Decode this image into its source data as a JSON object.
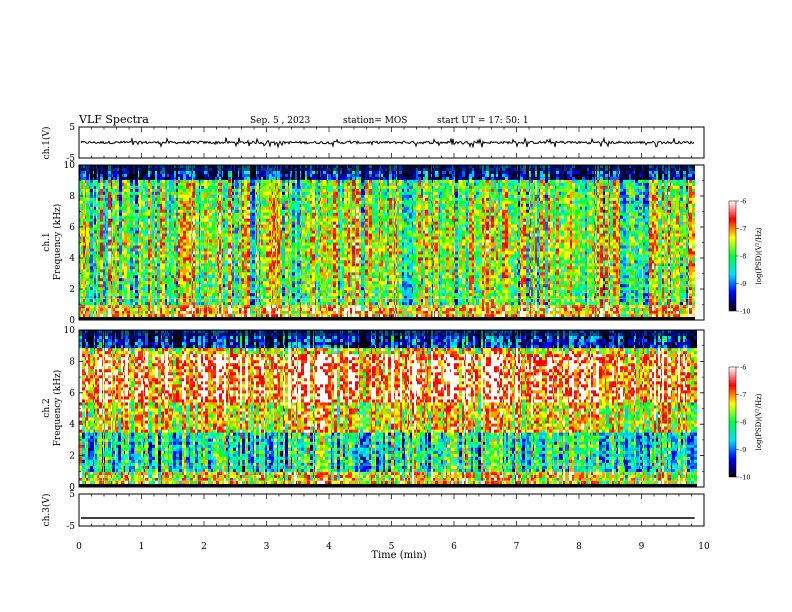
{
  "header": {
    "title": "VLF Spectra",
    "date": "Sep. 5 , 2023",
    "station": "station= MOS",
    "start": "start UT = 17: 50: 1"
  },
  "colorbar": {
    "label": "log(PSD)(V²/Hz)",
    "ticks": [
      "-6",
      "-7",
      "-8",
      "-9",
      "-10"
    ],
    "colors": [
      "#000000",
      "#0000ff",
      "#00e0ff",
      "#00ff40",
      "#ffff00",
      "#ff0000",
      "#ffffff"
    ]
  },
  "chart_data": [
    {
      "type": "line",
      "name": "ch.1 waveform",
      "ylabel": "ch.1(V)",
      "ylim": [
        -5,
        5
      ],
      "yticks": [
        "5",
        "-5"
      ],
      "xlim": [
        0,
        10
      ],
      "baseline": 0
    },
    {
      "type": "heatmap",
      "name": "ch.1 spectrogram",
      "ylabel_top": "ch.1",
      "ylabel": "Frequency (kHz)",
      "ylim": [
        0,
        10
      ],
      "yticks": [
        "10",
        "8",
        "6",
        "4",
        "2",
        "0"
      ],
      "xlim": [
        0,
        10
      ],
      "data_end_min": 9.85,
      "zrange": [
        -10,
        -6
      ]
    },
    {
      "type": "heatmap",
      "name": "ch.2 spectrogram",
      "ylabel_top": "ch.2",
      "ylabel": "Frequency (kHz)",
      "ylim": [
        0,
        10
      ],
      "yticks": [
        "10",
        "8",
        "6",
        "4",
        "2",
        "0"
      ],
      "xlim": [
        0,
        10
      ],
      "data_end_min": 9.85,
      "zrange": [
        -10,
        -6
      ]
    },
    {
      "type": "line",
      "name": "ch.3 waveform",
      "ylabel": "ch.3(V)",
      "ylim": [
        -5,
        5
      ],
      "yticks": [
        "5",
        "-5"
      ],
      "xlim": [
        0,
        10
      ],
      "baseline": -2.5
    }
  ],
  "xaxis": {
    "label": "Time (min)",
    "ticks": [
      "0",
      "1",
      "2",
      "3",
      "4",
      "5",
      "6",
      "7",
      "8",
      "9",
      "10"
    ]
  }
}
